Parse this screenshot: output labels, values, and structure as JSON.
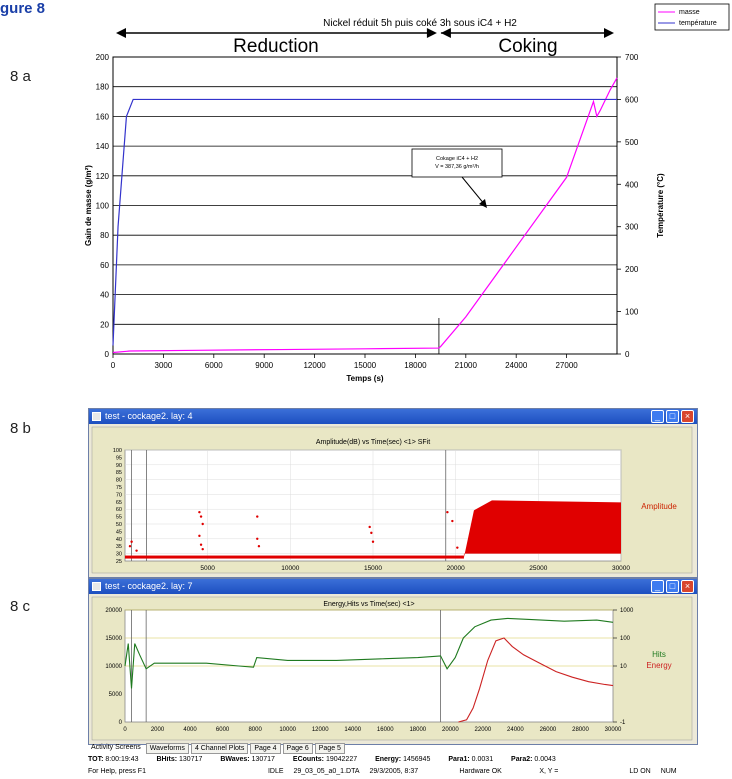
{
  "heading": "gure 8",
  "panel_labels": {
    "a": "8 a",
    "b": "8 b",
    "c": "8 c"
  },
  "chart_data": [
    {
      "type": "line",
      "panel": "8 a",
      "title": "Nickel réduit 5h puis coké 3h sous iC4 + H2",
      "phase_labels": [
        "Reduction",
        "Coking"
      ],
      "xlabel": "Temps (s)",
      "ylabel": "Gain de masse (g/m²)",
      "y2label": "Température (°C)",
      "xlim": [
        0,
        30000
      ],
      "ylim": [
        0,
        200
      ],
      "y2lim": [
        0,
        700
      ],
      "xticks": [
        "0",
        "3000",
        "6000",
        "9000",
        "12000",
        "15000",
        "18000",
        "21000",
        "24000",
        "27000"
      ],
      "yticks": [
        "0",
        "20",
        "40",
        "60",
        "80",
        "100",
        "120",
        "140",
        "160",
        "180",
        "200"
      ],
      "y2ticks": [
        "0",
        "100",
        "200",
        "300",
        "400",
        "500",
        "600",
        "700"
      ],
      "grid": true,
      "legend": {
        "position": "top-right",
        "entries": [
          "masse",
          "température"
        ]
      },
      "annotation": {
        "lines": [
          "Cokage iC4 + H2",
          "V = 387,36 g/m²/h"
        ]
      },
      "series": [
        {
          "name": "masse",
          "color": "#ff00ff",
          "axis": "y",
          "x": [
            0,
            1000,
            5000,
            10000,
            15000,
            19400,
            19500,
            21000,
            24000,
            27000,
            28600,
            28800,
            29000,
            29600,
            30000
          ],
          "y": [
            1,
            2,
            2.5,
            3,
            3.5,
            4,
            5,
            25,
            72,
            119,
            170,
            160,
            164,
            178,
            186
          ]
        },
        {
          "name": "température",
          "color": "#3333cc",
          "axis": "y2",
          "x": [
            0,
            300,
            800,
            1200,
            1500,
            19500,
            30000
          ],
          "y": [
            20,
            300,
            560,
            600,
            600,
            600,
            600
          ]
        }
      ]
    },
    {
      "type": "scatter",
      "panel": "8 b",
      "window_title": "test - cockage2. lay: 4",
      "title": "Amplitude(dB) vs Time(sec) <1> SFit",
      "side_label": "Amplitude",
      "xlim": [
        0,
        30000
      ],
      "ylim": [
        25,
        100
      ],
      "xticks": [
        "5000",
        "10000",
        "15000",
        "20000",
        "25000",
        "30000"
      ],
      "yticks": [
        "25",
        "30",
        "35",
        "40",
        "45",
        "50",
        "55",
        "60",
        "65",
        "70",
        "75",
        "80",
        "85",
        "90",
        "95",
        "100"
      ],
      "color": "#e00000",
      "markers_x": [
        400,
        1300,
        19400
      ],
      "sparse_points": [
        [
          300,
          35
        ],
        [
          400,
          38
        ],
        [
          700,
          32
        ],
        [
          4500,
          58
        ],
        [
          4600,
          55
        ],
        [
          4700,
          50
        ],
        [
          4500,
          42
        ],
        [
          4600,
          36
        ],
        [
          4700,
          33
        ],
        [
          8000,
          55
        ],
        [
          8000,
          40
        ],
        [
          8100,
          35
        ],
        [
          14800,
          48
        ],
        [
          14900,
          44
        ],
        [
          15000,
          38
        ],
        [
          19500,
          58
        ],
        [
          19800,
          52
        ],
        [
          20100,
          34
        ]
      ],
      "dense_region": {
        "baseline": 28,
        "x_start": 20500,
        "x_end": 30000,
        "y_top": 66,
        "y_bottom": 30
      }
    },
    {
      "type": "line",
      "panel": "8 c",
      "window_title": "test - cockage2. lay: 7",
      "title": "Energy,Hits vs Time(sec) <1>",
      "side_labels": [
        "Hits",
        "Energy"
      ],
      "xlim": [
        0,
        30000
      ],
      "ylim": [
        0,
        20000
      ],
      "y2log": [
        0.1,
        1000
      ],
      "xticks": [
        "0",
        "2000",
        "4000",
        "6000",
        "8000",
        "10000",
        "12000",
        "14000",
        "16000",
        "18000",
        "20000",
        "22000",
        "24000",
        "26000",
        "28000",
        "30000"
      ],
      "yticks": [
        "0",
        "5000",
        "10000",
        "15000",
        "20000"
      ],
      "y2ticks": [
        "-1",
        "10",
        "100",
        "1000"
      ],
      "markers_x": [
        400,
        1300,
        19400
      ],
      "series": [
        {
          "name": "Hits",
          "color": "#1f7a1f",
          "x": [
            0,
            200,
            400,
            600,
            900,
            1300,
            1800,
            3000,
            5000,
            7000,
            7900,
            8100,
            10000,
            13000,
            16000,
            18000,
            19400,
            19800,
            20300,
            20800,
            21500,
            22500,
            23500,
            25000,
            27000,
            29000,
            30000
          ],
          "y": [
            10000,
            14000,
            6000,
            14000,
            12000,
            9500,
            10500,
            10500,
            10500,
            10000,
            9800,
            11500,
            11000,
            11000,
            11300,
            11500,
            11800,
            9500,
            11500,
            15000,
            17000,
            18200,
            18500,
            18300,
            18000,
            18200,
            17800
          ]
        },
        {
          "name": "Energy",
          "color": "#cc2222",
          "x": [
            20500,
            21000,
            21400,
            21800,
            22300,
            22800,
            23300,
            23800,
            24500,
            25500,
            26500,
            27500,
            28500,
            29500,
            30000
          ],
          "y": [
            0,
            400,
            2500,
            6000,
            11000,
            14500,
            15000,
            13500,
            12000,
            10500,
            9000,
            8000,
            7200,
            6700,
            6500
          ]
        }
      ]
    }
  ],
  "window_b": {
    "title": "test - cockage2. lay: 4"
  },
  "window_c": {
    "title": "test - cockage2. lay: 7"
  },
  "tabs": [
    "Activity Screens",
    "Waveforms",
    "4 Channel Plots",
    "Page 4",
    "Page 6",
    "Page 5"
  ],
  "status": {
    "tot_label": "TOT:",
    "tot": "8:00:19:43",
    "bhits_label": "BHits:",
    "bhits": "130717",
    "bwaves_label": "BWaves:",
    "bwaves": "130717",
    "ecounts_label": "ECounts:",
    "ecounts": "19042227",
    "energy_label": "Energy:",
    "energy": "1456945",
    "para1_label": "Para1:",
    "para1": "0.0031",
    "para2_label": "Para2:",
    "para2": "0.0043",
    "help": "For Help, press F1",
    "state": "IDLE",
    "file": "29_03_05_a0_1.DTA",
    "date": "29/3/2005, 8:37",
    "hardware": "Hardware OK",
    "xy": "X, Y =",
    "ld": "LD ON",
    "num": "NUM"
  }
}
